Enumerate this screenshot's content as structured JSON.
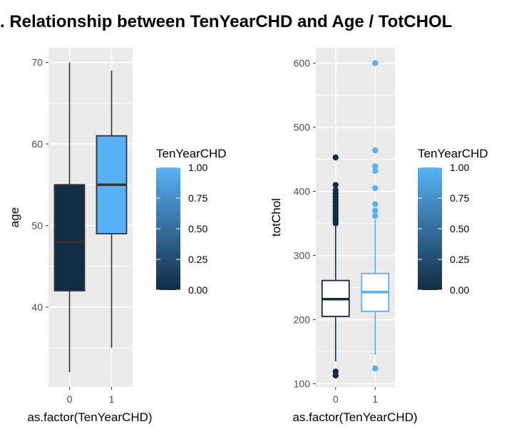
{
  "title": ". Relationship between TenYearCHD and Age / TotCHOL",
  "chart_data": [
    {
      "type": "boxplot",
      "xlabel": "as.factor(TenYearCHD)",
      "ylabel": "age",
      "categories": [
        "0",
        "1"
      ],
      "ylim": [
        30.2,
        71.8
      ],
      "yticks": [
        40,
        50,
        60,
        70
      ],
      "grid": true,
      "boxes": [
        {
          "category": "0",
          "fill_value": 0,
          "min": 32,
          "q1": 42,
          "median": 48,
          "q3": 55,
          "max": 70,
          "outliers": []
        },
        {
          "category": "1",
          "fill_value": 1,
          "min": 35,
          "q1": 49,
          "median": 55,
          "q3": 61,
          "max": 69,
          "outliers": []
        }
      ],
      "legend": {
        "title": "TenYearCHD",
        "ticks": [
          "1.00",
          "0.75",
          "0.50",
          "0.25",
          "0.00"
        ],
        "position": "right"
      }
    },
    {
      "type": "boxplot",
      "xlabel": "as.factor(TenYearCHD)",
      "ylabel": "totChol",
      "categories": [
        "0",
        "1"
      ],
      "ylim": [
        95,
        624
      ],
      "yticks": [
        100,
        200,
        300,
        400,
        500,
        600
      ],
      "grid": true,
      "boxes": [
        {
          "category": "0",
          "fill_value": 0,
          "min": 135,
          "q1": 205,
          "median": 232,
          "q3": 261,
          "max": 345,
          "outliers": [
            113,
            119,
            350,
            354,
            358,
            362,
            366,
            370,
            374,
            378,
            383,
            387,
            392,
            397,
            402,
            410,
            453
          ]
        },
        {
          "category": "1",
          "fill_value": 1,
          "min": 145,
          "q1": 213,
          "median": 243,
          "q3": 272,
          "max": 356,
          "outliers": [
            124,
            362,
            370,
            380,
            405,
            432,
            439,
            464,
            600
          ]
        }
      ],
      "legend": {
        "title": "TenYearCHD",
        "ticks": [
          "1.00",
          "0.75",
          "0.50",
          "0.25",
          "0.00"
        ],
        "position": "right"
      }
    }
  ],
  "colors": {
    "low": "#132B43",
    "high": "#56B1F7",
    "panel": "#EBEBEB",
    "grid": "#FFFFFF"
  }
}
